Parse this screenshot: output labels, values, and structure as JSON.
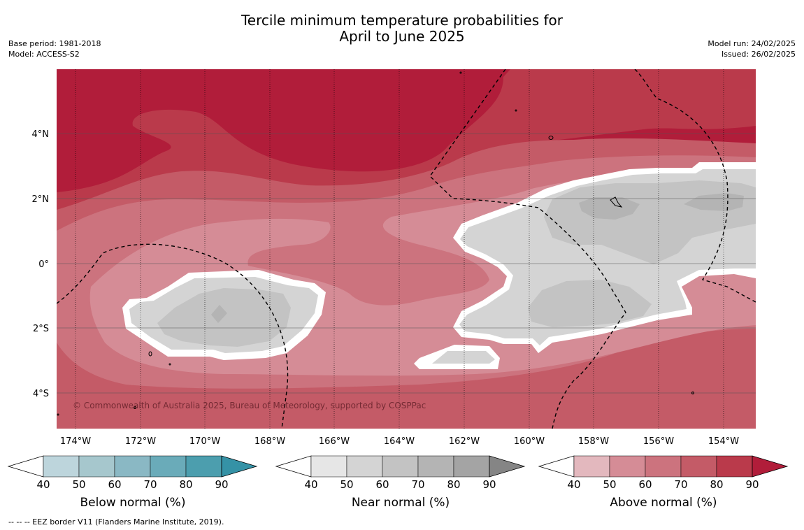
{
  "title": {
    "line1": "Tercile minimum temperature probabilities for",
    "line2": "April to June 2025"
  },
  "meta_left": {
    "base_period": "Base period: 1981-2018",
    "model": "Model: ACCESS-S2"
  },
  "meta_right": {
    "model_run": "Model run: 24/02/2025",
    "issued": "Issued: 26/02/2025"
  },
  "map": {
    "lat_labels": [
      "4°N",
      "2°N",
      "0°",
      "2°S",
      "4°S"
    ],
    "lon_labels": [
      "174°W",
      "172°W",
      "170°W",
      "168°W",
      "166°W",
      "164°W",
      "162°W",
      "160°W",
      "158°W",
      "156°W",
      "154°W"
    ],
    "copyright": "© Commonwealth of Australia 2025, Bureau of Meteorology, supported by COSPPac"
  },
  "colorbars": [
    {
      "label": "Below normal (%)",
      "ticks": [
        "40",
        "50",
        "60",
        "70",
        "80",
        "90"
      ],
      "colors": [
        "#ffffff",
        "#bdd5dc",
        "#a6c7cd",
        "#8ab8c4",
        "#6aabb9",
        "#4c9eae",
        "#3592a6"
      ]
    },
    {
      "label": "Near normal (%)",
      "ticks": [
        "40",
        "50",
        "60",
        "70",
        "80",
        "90"
      ],
      "colors": [
        "#ffffff",
        "#e6e6e6",
        "#d4d4d4",
        "#c3c3c3",
        "#b4b4b4",
        "#a4a4a4",
        "#858585"
      ]
    },
    {
      "label": "Above normal (%)",
      "ticks": [
        "40",
        "50",
        "60",
        "70",
        "80",
        "90"
      ],
      "colors": [
        "#ffffff",
        "#e3b8be",
        "#d58c96",
        "#cc737e",
        "#c45b67",
        "#ba3a4b",
        "#b11d3a"
      ]
    }
  ],
  "footnote": "-- -- -- EEZ border V11 (Flanders Marine Institute, 2019)."
}
